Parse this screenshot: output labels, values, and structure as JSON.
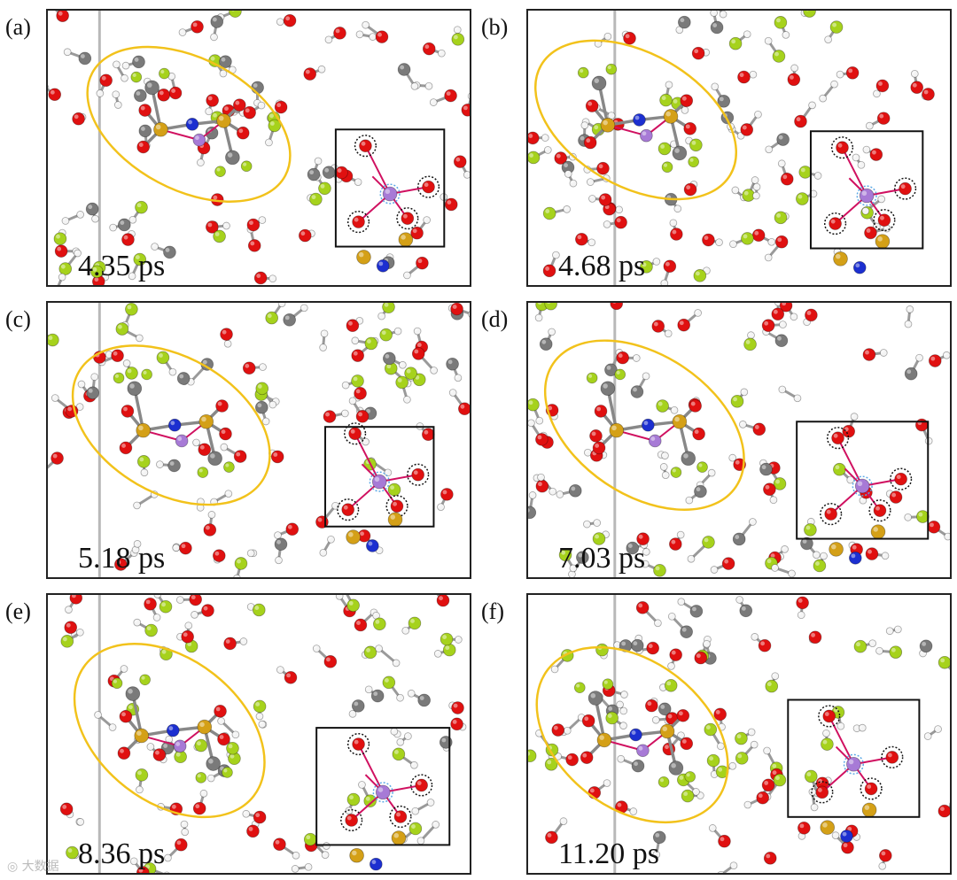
{
  "figure": {
    "panels": [
      {
        "label": "(a)",
        "time": "4.35 ps"
      },
      {
        "label": "(b)",
        "time": "4.68 ps"
      },
      {
        "label": "(c)",
        "time": "5.18 ps"
      },
      {
        "label": "(d)",
        "time": "7.03 ps"
      },
      {
        "label": "(e)",
        "time": "8.36 ps"
      },
      {
        "label": "(f)",
        "time": "11.20 ps"
      }
    ],
    "atom_colors": {
      "oxygen": "#e01010",
      "carbon": "#7a7a7a",
      "hydrogen": "#f4f4f4",
      "fluorine": "#a6d21c",
      "lithium": "#a77ad6",
      "sulfur": "#d4a017",
      "nitrogen": "#1c2fd0"
    },
    "highlight_colors": {
      "ellipse": "#f2c21b",
      "box": "#111111",
      "dotted_circle": "#111111",
      "dotted_circle_center": "#5aa8e6"
    },
    "watermark": "大数据"
  }
}
